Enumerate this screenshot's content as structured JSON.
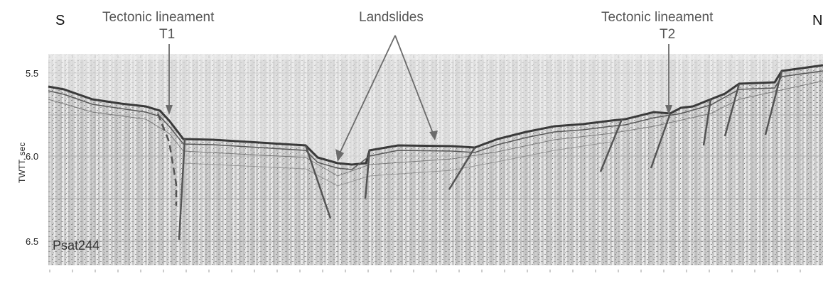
{
  "directions": {
    "left": "S",
    "right": "N"
  },
  "annotations": {
    "t1_line1": "Tectonic lineament",
    "t1_line2": "T1",
    "landslides": "Landslides",
    "t2_line1": "Tectonic lineament",
    "t2_line2": "T2"
  },
  "axis": {
    "ylabel": "TWTT, sec",
    "ticks": [
      "5.5",
      "6.0",
      "6.5"
    ]
  },
  "profile_label": "Psat244",
  "colors": {
    "arrow": "#6b6b6b",
    "fault": "#555555",
    "seabed": "#3a3a3a",
    "noise": "#bdbdbd"
  }
}
